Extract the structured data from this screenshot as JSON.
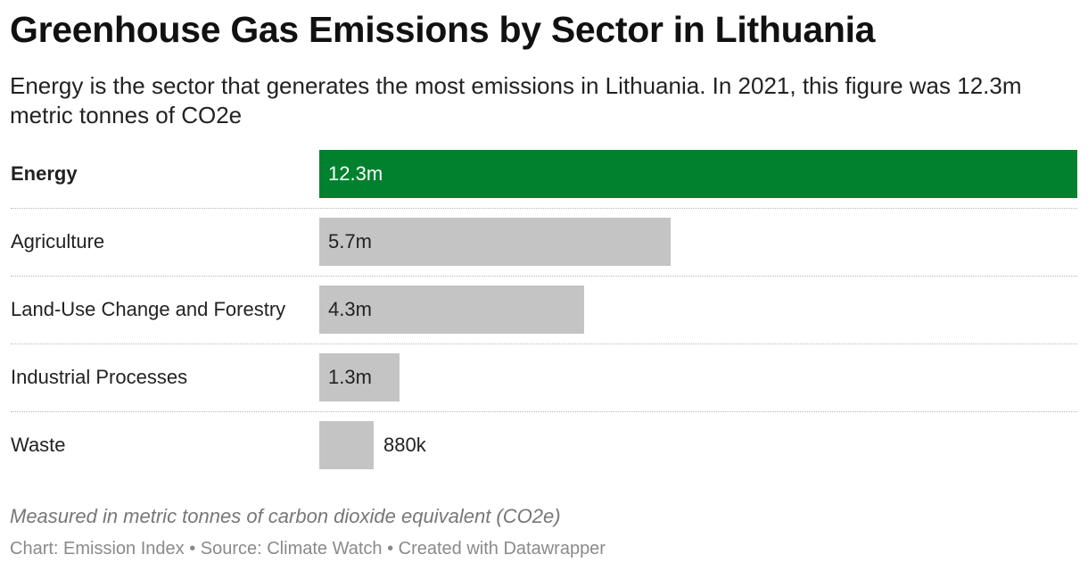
{
  "header": {
    "title": "Greenhouse Gas Emissions by Sector in Lithuania",
    "subtitle": "Energy is the sector that generates the most emissions in Lithuania. In 2021, this figure was 12.3m metric tonnes of CO2e"
  },
  "chart_data": {
    "type": "bar",
    "orientation": "horizontal",
    "title": "Greenhouse Gas Emissions by Sector in Lithuania",
    "categories": [
      "Energy",
      "Agriculture",
      "Land-Use Change and Forestry",
      "Industrial Processes",
      "Waste"
    ],
    "values": [
      12300000,
      5700000,
      4300000,
      1300000,
      880000
    ],
    "value_labels": [
      "12.3m",
      "5.7m",
      "4.3m",
      "1.3m",
      "880k"
    ],
    "highlight": "Energy",
    "colors": {
      "highlight": "#01812e",
      "default": "#c4c4c4"
    },
    "xlim": [
      0,
      12300000
    ],
    "grid": false,
    "legend": "none"
  },
  "footer": {
    "note": "Measured in metric tonnes of carbon dioxide equivalent (CO2e)",
    "credit": "Chart: Emission Index • Source: Climate Watch • Created with Datawrapper"
  }
}
